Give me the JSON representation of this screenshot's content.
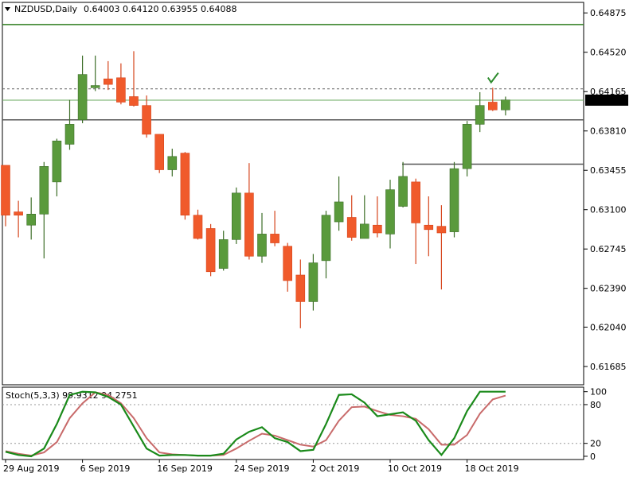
{
  "chart_data": {
    "type": "candlestick",
    "header": {
      "symbol": "NZDUSD,Daily",
      "ohlc": "0.64003 0.64120 0.63955 0.64088"
    },
    "price_axis": {
      "ylim": [
        0.6152,
        0.6497
      ],
      "ticks": [
        "0.64875",
        "0.64520",
        "0.64165",
        "0.63810",
        "0.63455",
        "0.63100",
        "0.62745",
        "0.62390",
        "0.62040",
        "0.61685"
      ],
      "current_price_label": "0.64088"
    },
    "x_axis": {
      "tick_labels": [
        "29 Aug 2019",
        "6 Sep 2019",
        "16 Sep 2019",
        "24 Sep 2019",
        "2 Oct 2019",
        "10 Oct 2019",
        "18 Oct 2019"
      ]
    },
    "candles": [
      {
        "o": 0.635,
        "h": 0.635,
        "l": 0.6295,
        "c": 0.6305
      },
      {
        "o": 0.6308,
        "h": 0.6318,
        "l": 0.6285,
        "c": 0.6305
      },
      {
        "o": 0.6296,
        "h": 0.6321,
        "l": 0.6283,
        "c": 0.6306
      },
      {
        "o": 0.6306,
        "h": 0.6353,
        "l": 0.6266,
        "c": 0.6349
      },
      {
        "o": 0.6335,
        "h": 0.6374,
        "l": 0.6322,
        "c": 0.6372
      },
      {
        "o": 0.6369,
        "h": 0.6409,
        "l": 0.6364,
        "c": 0.6387
      },
      {
        "o": 0.6391,
        "h": 0.6449,
        "l": 0.6388,
        "c": 0.6432
      },
      {
        "o": 0.642,
        "h": 0.6449,
        "l": 0.6417,
        "c": 0.6422
      },
      {
        "o": 0.6428,
        "h": 0.6444,
        "l": 0.6418,
        "c": 0.6423
      },
      {
        "o": 0.6429,
        "h": 0.6442,
        "l": 0.6405,
        "c": 0.6407
      },
      {
        "o": 0.6412,
        "h": 0.6453,
        "l": 0.6403,
        "c": 0.6404
      },
      {
        "o": 0.6404,
        "h": 0.6413,
        "l": 0.6375,
        "c": 0.6378
      },
      {
        "o": 0.6378,
        "h": 0.6378,
        "l": 0.6343,
        "c": 0.6346
      },
      {
        "o": 0.6346,
        "h": 0.6365,
        "l": 0.634,
        "c": 0.6358
      },
      {
        "o": 0.6361,
        "h": 0.6362,
        "l": 0.6301,
        "c": 0.6305
      },
      {
        "o": 0.6305,
        "h": 0.631,
        "l": 0.6283,
        "c": 0.6284
      },
      {
        "o": 0.6293,
        "h": 0.6297,
        "l": 0.625,
        "c": 0.6254
      },
      {
        "o": 0.6257,
        "h": 0.6291,
        "l": 0.6255,
        "c": 0.6283
      },
      {
        "o": 0.6283,
        "h": 0.633,
        "l": 0.6279,
        "c": 0.6325
      },
      {
        "o": 0.6325,
        "h": 0.6352,
        "l": 0.6265,
        "c": 0.6268
      },
      {
        "o": 0.6268,
        "h": 0.6307,
        "l": 0.6262,
        "c": 0.6288
      },
      {
        "o": 0.6288,
        "h": 0.6309,
        "l": 0.6277,
        "c": 0.628
      },
      {
        "o": 0.6277,
        "h": 0.628,
        "l": 0.6236,
        "c": 0.6246
      },
      {
        "o": 0.6251,
        "h": 0.6265,
        "l": 0.6203,
        "c": 0.6227
      },
      {
        "o": 0.6227,
        "h": 0.627,
        "l": 0.6219,
        "c": 0.6262
      },
      {
        "o": 0.6264,
        "h": 0.6309,
        "l": 0.6248,
        "c": 0.6305
      },
      {
        "o": 0.6299,
        "h": 0.634,
        "l": 0.6291,
        "c": 0.6317
      },
      {
        "o": 0.6303,
        "h": 0.6323,
        "l": 0.6282,
        "c": 0.6285
      },
      {
        "o": 0.6284,
        "h": 0.6323,
        "l": 0.6284,
        "c": 0.6297
      },
      {
        "o": 0.6296,
        "h": 0.6322,
        "l": 0.6285,
        "c": 0.6289
      },
      {
        "o": 0.6288,
        "h": 0.6337,
        "l": 0.6275,
        "c": 0.6328
      },
      {
        "o": 0.6313,
        "h": 0.6353,
        "l": 0.6312,
        "c": 0.634
      },
      {
        "o": 0.6335,
        "h": 0.6338,
        "l": 0.6261,
        "c": 0.6298
      },
      {
        "o": 0.6296,
        "h": 0.6322,
        "l": 0.6268,
        "c": 0.6292
      },
      {
        "o": 0.6295,
        "h": 0.6314,
        "l": 0.6238,
        "c": 0.6289
      },
      {
        "o": 0.629,
        "h": 0.6353,
        "l": 0.6285,
        "c": 0.6347
      },
      {
        "o": 0.6347,
        "h": 0.639,
        "l": 0.634,
        "c": 0.6387
      },
      {
        "o": 0.6387,
        "h": 0.6416,
        "l": 0.638,
        "c": 0.6404
      },
      {
        "o": 0.6407,
        "h": 0.642,
        "l": 0.6399,
        "c": 0.64
      },
      {
        "o": 0.64,
        "h": 0.6412,
        "l": 0.6395,
        "c": 0.6409
      }
    ],
    "horizontal_lines": [
      0.6477,
      0.6391,
      0.6351,
      0.64088
    ],
    "dotted_line": 0.6419,
    "checkmark_price": 0.6427,
    "stochastic": {
      "label": "Stoch(5,3,3) 99.9312 94.2751",
      "levels": [
        "100",
        "80",
        "20",
        "0"
      ],
      "ylim": [
        -5,
        107
      ],
      "main": [
        7,
        2,
        0,
        12,
        50,
        95,
        100,
        99,
        92,
        80,
        46,
        12,
        1,
        2,
        2,
        1,
        1,
        4,
        26,
        38,
        45,
        28,
        22,
        8,
        10,
        50,
        95,
        96,
        83,
        62,
        65,
        68,
        55,
        25,
        2,
        28,
        70,
        100,
        100,
        100
      ],
      "signal": [
        8,
        4,
        1,
        6,
        22,
        59,
        82,
        99,
        95,
        82,
        59,
        28,
        6,
        3,
        2,
        1,
        1,
        2,
        12,
        24,
        35,
        32,
        25,
        18,
        15,
        25,
        55,
        76,
        77,
        70,
        64,
        62,
        58,
        42,
        18,
        18,
        33,
        66,
        88,
        94
      ]
    }
  }
}
